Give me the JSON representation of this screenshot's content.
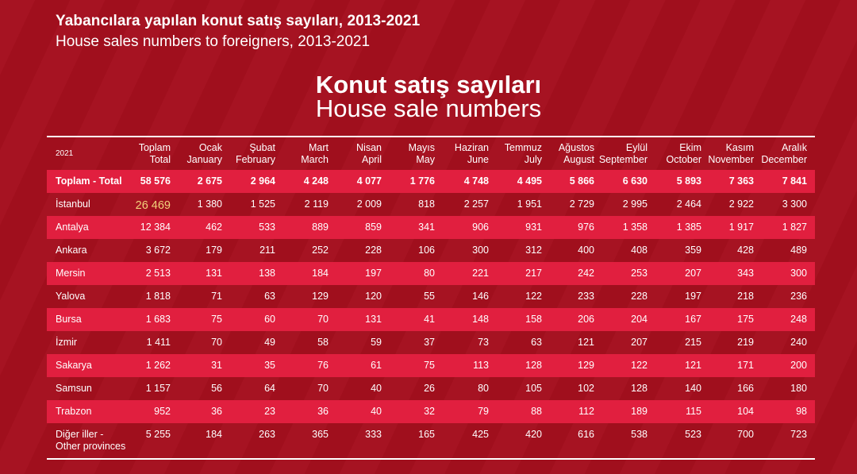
{
  "header": {
    "title_tr": "Yabancılara yapılan konut satış sayıları, 2013-2021",
    "title_en": "House sales numbers to foreigners, 2013-2021",
    "subtitle_tr": "Konut satış sayıları",
    "subtitle_en": "House sale numbers"
  },
  "table": {
    "year": "2021",
    "columns": [
      {
        "tr": "Toplam",
        "en": "Total"
      },
      {
        "tr": "Ocak",
        "en": "January"
      },
      {
        "tr": "Şubat",
        "en": "February"
      },
      {
        "tr": "Mart",
        "en": "March"
      },
      {
        "tr": "Nisan",
        "en": "April"
      },
      {
        "tr": "Mayıs",
        "en": "May"
      },
      {
        "tr": "Haziran",
        "en": "June"
      },
      {
        "tr": "Temmuz",
        "en": "July"
      },
      {
        "tr": "Ağustos",
        "en": "August"
      },
      {
        "tr": "Eylül",
        "en": "September"
      },
      {
        "tr": "Ekim",
        "en": "October"
      },
      {
        "tr": "Kasım",
        "en": "November"
      },
      {
        "tr": "Aralık",
        "en": "December"
      }
    ],
    "rows": [
      {
        "label": "Toplam - Total",
        "values": [
          "58 576",
          "2 675",
          "2 964",
          "4 248",
          "4 077",
          "1 776",
          "4 748",
          "4 495",
          "5 866",
          "6 630",
          "5 893",
          "7 363",
          "7 841"
        ]
      },
      {
        "label": "İstanbul",
        "values": [
          "26 469",
          "1 380",
          "1 525",
          "2 119",
          "2 009",
          "818",
          "2 257",
          "1 951",
          "2 729",
          "2 995",
          "2 464",
          "2 922",
          "3 300"
        ]
      },
      {
        "label": "Antalya",
        "values": [
          "12 384",
          "462",
          "533",
          "889",
          "859",
          "341",
          "906",
          "931",
          "976",
          "1 358",
          "1 385",
          "1 917",
          "1 827"
        ]
      },
      {
        "label": "Ankara",
        "values": [
          "3 672",
          "179",
          "211",
          "252",
          "228",
          "106",
          "300",
          "312",
          "400",
          "408",
          "359",
          "428",
          "489"
        ]
      },
      {
        "label": "Mersin",
        "values": [
          "2 513",
          "131",
          "138",
          "184",
          "197",
          "80",
          "221",
          "217",
          "242",
          "253",
          "207",
          "343",
          "300"
        ]
      },
      {
        "label": "Yalova",
        "values": [
          "1 818",
          "71",
          "63",
          "129",
          "120",
          "55",
          "146",
          "122",
          "233",
          "228",
          "197",
          "218",
          "236"
        ]
      },
      {
        "label": "Bursa",
        "values": [
          "1 683",
          "75",
          "60",
          "70",
          "131",
          "41",
          "148",
          "158",
          "206",
          "204",
          "167",
          "175",
          "248"
        ]
      },
      {
        "label": "İzmir",
        "values": [
          "1 411",
          "70",
          "49",
          "58",
          "59",
          "37",
          "73",
          "63",
          "121",
          "207",
          "215",
          "219",
          "240"
        ]
      },
      {
        "label": "Sakarya",
        "values": [
          "1 262",
          "31",
          "35",
          "76",
          "61",
          "75",
          "113",
          "128",
          "129",
          "122",
          "121",
          "171",
          "200"
        ]
      },
      {
        "label": "Samsun",
        "values": [
          "1 157",
          "56",
          "64",
          "70",
          "40",
          "26",
          "80",
          "105",
          "102",
          "128",
          "140",
          "166",
          "180"
        ]
      },
      {
        "label": "Trabzon",
        "values": [
          "952",
          "36",
          "23",
          "36",
          "40",
          "32",
          "79",
          "88",
          "112",
          "189",
          "115",
          "104",
          "98"
        ]
      },
      {
        "label": "Diğer iller -",
        "label2": "Other provinces",
        "values": [
          "5 255",
          "184",
          "263",
          "365",
          "333",
          "165",
          "425",
          "420",
          "616",
          "538",
          "523",
          "700",
          "723"
        ]
      }
    ]
  },
  "colors": {
    "background": "#a50f1e",
    "stripe": "#e11f3f",
    "highlight": "#f2d27c"
  }
}
